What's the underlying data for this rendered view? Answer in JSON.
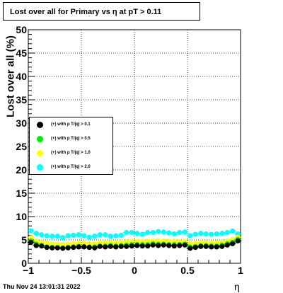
{
  "title": "Lost over all for Primary vs   η at pT > 0.11",
  "timestamp": "Thu Nov 24 13:01:31 2022",
  "chart_data": {
    "type": "scatter",
    "xlabel": "η",
    "ylabel": "Lost over all (%)",
    "xlim": [
      -1,
      1
    ],
    "ylim": [
      0,
      50
    ],
    "grid": true,
    "legend_position": "middle-left",
    "xticks": [
      "−1",
      "−0.5",
      "0",
      "0.5",
      "1"
    ],
    "yticks": [
      "0",
      "5",
      "10",
      "15",
      "20",
      "25",
      "30",
      "35",
      "40",
      "45",
      "50"
    ],
    "x": [
      -0.975,
      -0.925,
      -0.875,
      -0.825,
      -0.775,
      -0.725,
      -0.675,
      -0.625,
      -0.575,
      -0.525,
      -0.475,
      -0.425,
      -0.375,
      -0.325,
      -0.275,
      -0.225,
      -0.175,
      -0.125,
      -0.075,
      -0.025,
      0.025,
      0.075,
      0.125,
      0.175,
      0.225,
      0.275,
      0.325,
      0.375,
      0.425,
      0.475,
      0.525,
      0.575,
      0.625,
      0.675,
      0.725,
      0.775,
      0.825,
      0.875,
      0.925,
      0.975
    ],
    "series": [
      {
        "name": "(+) with p T/|q| > 0.1",
        "color": "#000000",
        "values": [
          4.5,
          3.8,
          3.7,
          3.4,
          3.3,
          3.3,
          3.2,
          3.3,
          3.4,
          3.5,
          3.5,
          3.4,
          3.3,
          3.6,
          3.5,
          3.6,
          3.5,
          3.6,
          3.6,
          3.7,
          3.8,
          3.7,
          3.7,
          3.9,
          3.8,
          3.9,
          3.8,
          3.7,
          3.8,
          3.9,
          3.2,
          3.4,
          3.6,
          3.6,
          3.5,
          3.5,
          3.6,
          3.9,
          4.2,
          4.8
        ]
      },
      {
        "name": "(+) with p T/|q| > 0.5",
        "color": "#00ee00",
        "values": [
          4.8,
          4.1,
          3.8,
          3.5,
          3.4,
          3.4,
          3.3,
          3.4,
          3.5,
          3.6,
          3.6,
          3.5,
          3.5,
          3.7,
          3.7,
          3.8,
          3.7,
          3.8,
          3.9,
          4.0,
          4.0,
          4.0,
          4.0,
          4.2,
          4.1,
          4.1,
          4.0,
          4.0,
          4.0,
          4.1,
          3.5,
          3.6,
          3.8,
          3.8,
          3.7,
          3.7,
          3.9,
          4.2,
          4.5,
          5.1
        ]
      },
      {
        "name": "(+) with p T/|q| > 1.0",
        "color": "#ffff00",
        "values": [
          5.5,
          4.8,
          4.5,
          4.3,
          4.1,
          4.1,
          4.0,
          4.1,
          4.2,
          4.3,
          4.3,
          4.2,
          4.2,
          4.4,
          4.4,
          4.5,
          4.4,
          4.5,
          4.6,
          4.7,
          4.7,
          4.7,
          4.7,
          4.8,
          4.8,
          4.8,
          4.7,
          4.7,
          4.6,
          4.7,
          4.2,
          4.3,
          4.5,
          4.4,
          4.4,
          4.4,
          4.5,
          4.8,
          5.1,
          5.6
        ]
      },
      {
        "name": "(+) with p T/|q| > 2.0",
        "color": "#00ffff",
        "values": [
          7.0,
          6.4,
          6.1,
          5.9,
          5.8,
          5.8,
          5.5,
          5.9,
          6.0,
          6.1,
          5.9,
          5.6,
          5.8,
          6.1,
          6.1,
          5.8,
          5.9,
          6.0,
          6.6,
          6.6,
          6.4,
          6.2,
          6.6,
          6.6,
          6.8,
          6.7,
          6.5,
          6.3,
          6.6,
          6.7,
          5.9,
          6.2,
          6.4,
          6.3,
          6.2,
          6.3,
          6.4,
          6.6,
          6.9,
          6.3
        ]
      }
    ]
  }
}
